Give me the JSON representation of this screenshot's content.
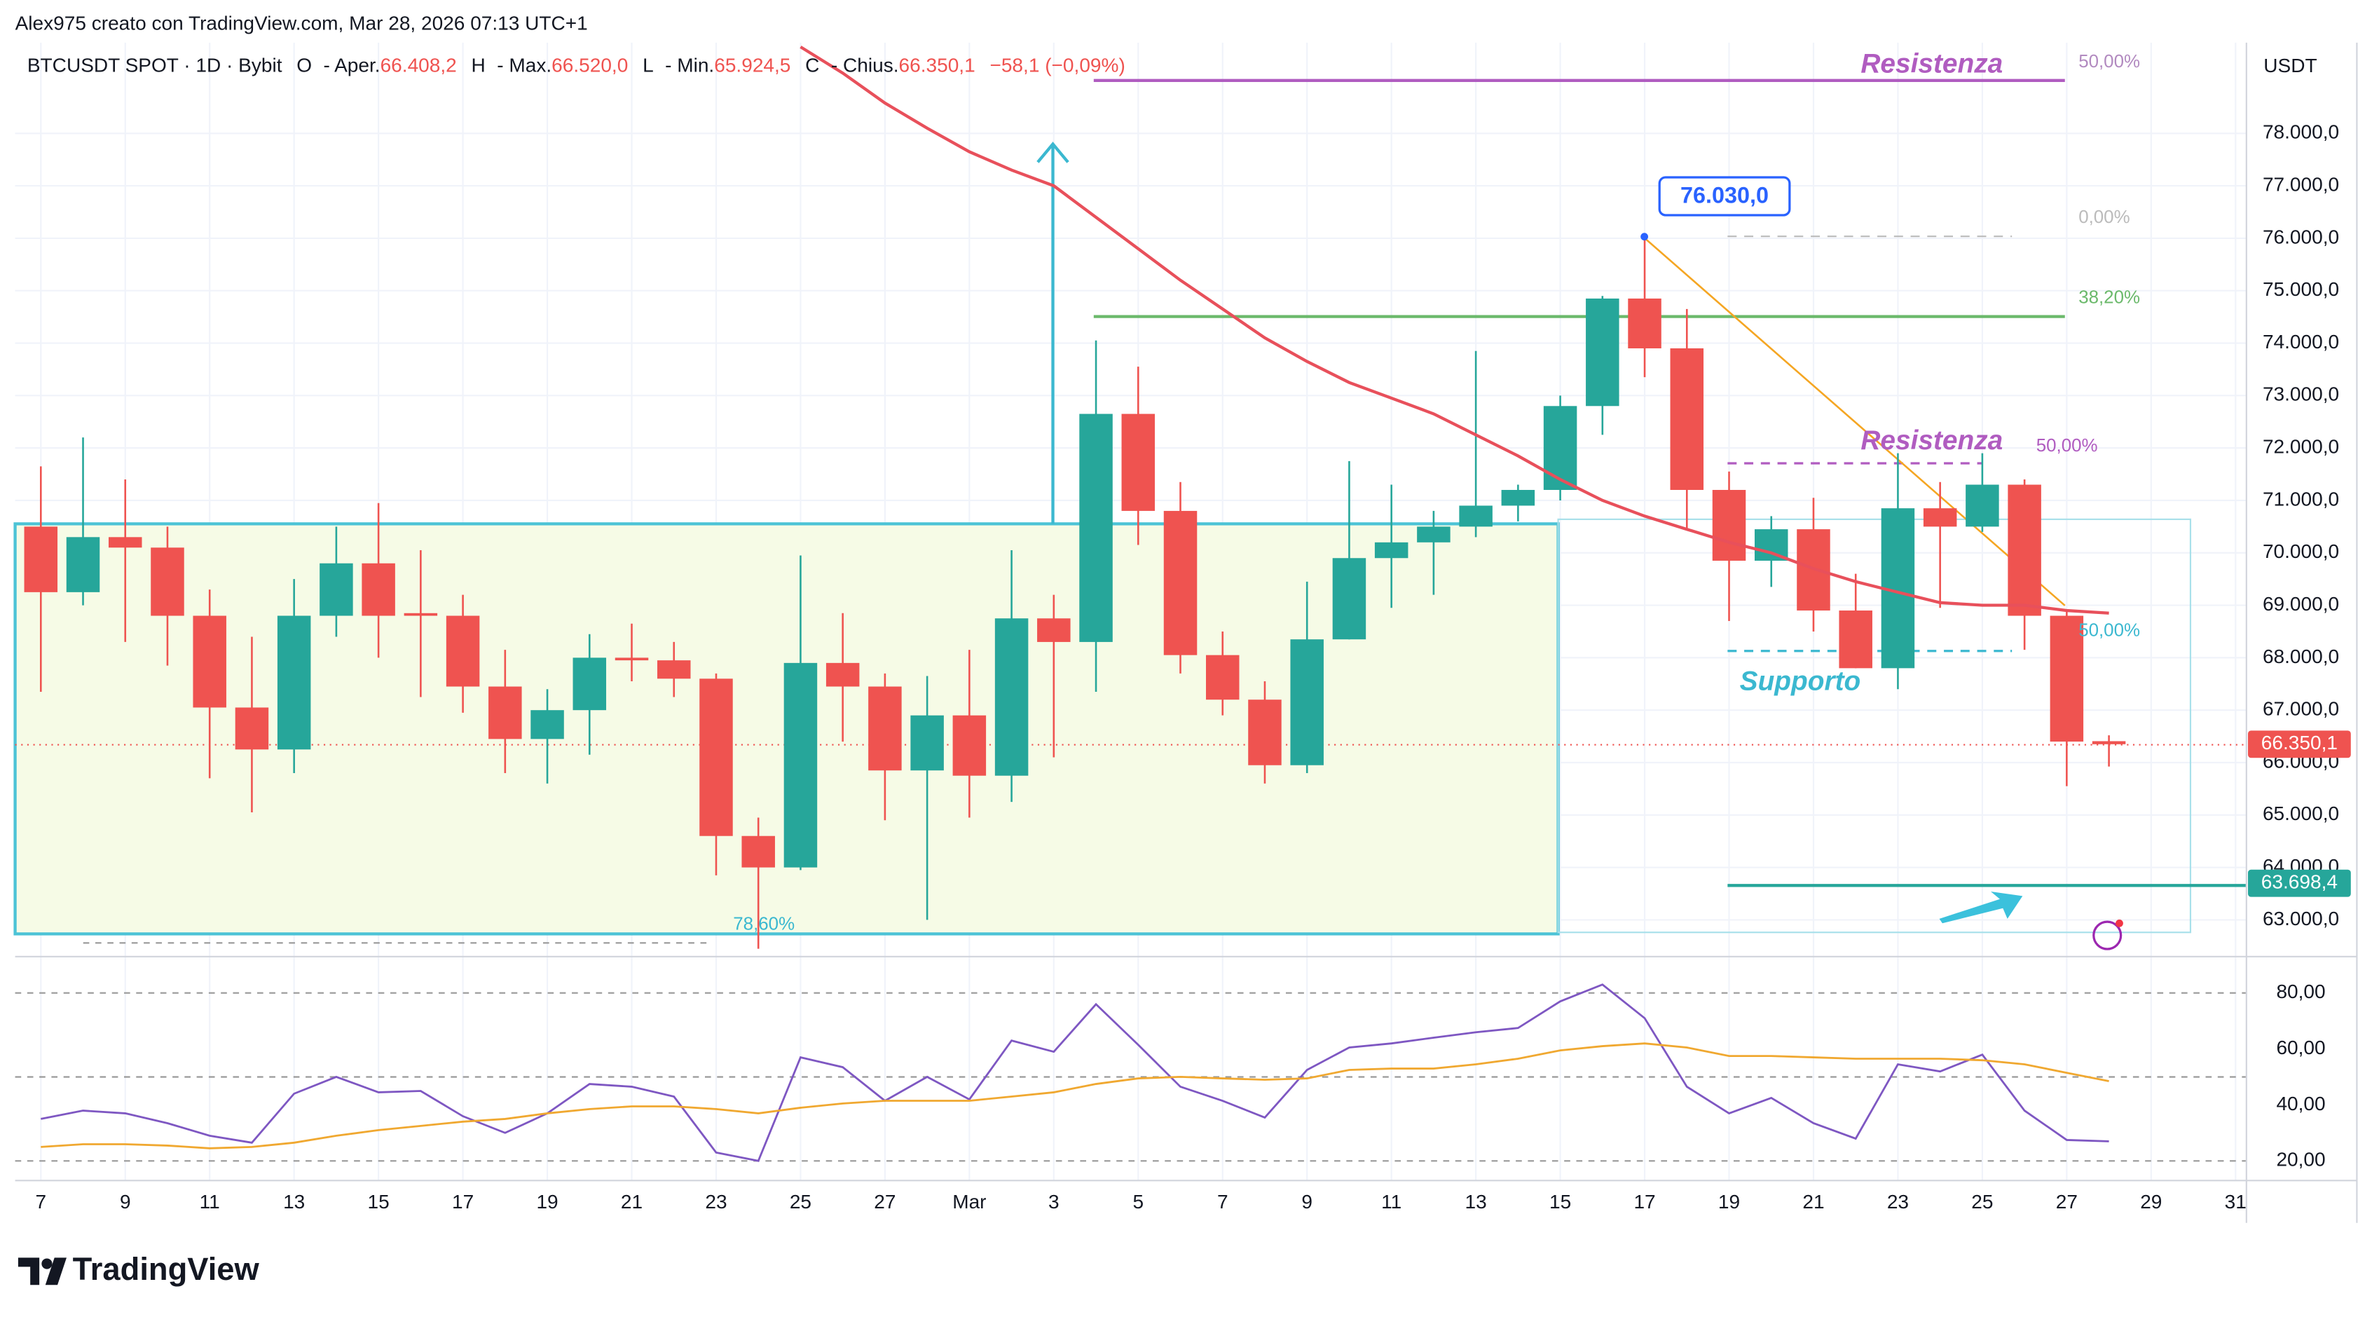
{
  "header": {
    "credit": "Alex975 creato con TradingView.com, Mar 28, 2026 07:13 UTC+1",
    "symbol": "BTCUSDT SPOT · 1D · Bybit",
    "items": [
      "O",
      "- Aper.",
      "66.408,2",
      "H",
      "- Max.",
      "66.520,0",
      "L",
      "- Min.",
      "65.924,5",
      "C",
      "- Chius.",
      "66.350,1",
      "−58,1 (−0,09%)"
    ]
  },
  "brand": "TradingView",
  "chart_data": [
    {
      "type": "candlestick",
      "unit": "USDT",
      "up_color": "#26a69a",
      "down_color": "#ef5350",
      "categories": [
        "7",
        null,
        "9",
        null,
        "11",
        null,
        "13",
        null,
        "15",
        null,
        "17",
        null,
        "19",
        null,
        "21",
        null,
        "23",
        null,
        "25",
        null,
        "27",
        null,
        "Mar",
        null,
        "3",
        null,
        "5",
        null,
        "7",
        null,
        "9",
        null,
        "11",
        null,
        "13",
        null,
        "15",
        null,
        "17",
        null,
        "19",
        null,
        "21",
        null,
        "23",
        null,
        "25",
        null,
        "27",
        null,
        "29",
        null,
        "31"
      ],
      "open": [
        70500,
        69250,
        70300,
        70100,
        68800,
        67050,
        66250,
        68800,
        69800,
        68850,
        68800,
        67450,
        66450,
        67000,
        68000,
        67950,
        67600,
        64600,
        64000,
        67900,
        67450,
        65850,
        66900,
        65750,
        68750,
        68300,
        72650,
        70800,
        68050,
        67200,
        65950,
        68350,
        69900,
        70200,
        70500,
        70900,
        71200,
        72800,
        74850,
        73900,
        71200,
        69850,
        70450,
        68900,
        67800,
        70850,
        70500,
        71300,
        68800,
        66408.2,
        null,
        null,
        null
      ],
      "high": [
        71650,
        72200,
        71400,
        70500,
        69300,
        68400,
        69500,
        70500,
        70950,
        70050,
        69200,
        68150,
        67400,
        68450,
        68650,
        68300,
        67700,
        64950,
        69950,
        68850,
        67700,
        67650,
        68150,
        70050,
        69200,
        74050,
        73550,
        71350,
        68500,
        67550,
        69450,
        71750,
        71300,
        70800,
        73850,
        71300,
        73000,
        74900,
        76030,
        74650,
        71550,
        70700,
        71050,
        69600,
        71900,
        71350,
        71900,
        71400,
        68900,
        66520,
        null,
        null,
        null
      ],
      "low": [
        67350,
        69000,
        68300,
        67850,
        65700,
        65050,
        65800,
        68400,
        68000,
        67250,
        66950,
        65800,
        65600,
        66150,
        67550,
        67250,
        63850,
        62450,
        63950,
        66400,
        64900,
        63000,
        64950,
        65250,
        66100,
        67350,
        70150,
        67700,
        66900,
        65600,
        65800,
        68350,
        68950,
        69200,
        70300,
        70600,
        71000,
        72250,
        73350,
        70450,
        68700,
        69350,
        68500,
        67800,
        67400,
        68950,
        70400,
        68150,
        65550,
        65924.5,
        null,
        null,
        null
      ],
      "close": [
        69250,
        70300,
        70100,
        68800,
        67050,
        66250,
        68800,
        69800,
        68800,
        68800,
        67450,
        66450,
        67000,
        68000,
        67950,
        67600,
        64600,
        64000,
        67900,
        67450,
        65850,
        66900,
        65750,
        68750,
        68300,
        72650,
        70800,
        68050,
        67200,
        65950,
        68350,
        69900,
        70200,
        70500,
        70900,
        71200,
        72800,
        74850,
        73900,
        71200,
        69850,
        70450,
        68900,
        67800,
        70850,
        70500,
        71300,
        68800,
        66400,
        66350.1,
        null,
        null,
        null
      ],
      "ma": {
        "color": "#e8505b",
        "values": [
          null,
          null,
          null,
          null,
          null,
          null,
          null,
          null,
          null,
          null,
          null,
          null,
          null,
          null,
          null,
          null,
          null,
          null,
          79650,
          79150,
          78580,
          78100,
          77650,
          77300,
          77000,
          76400,
          75800,
          75200,
          74650,
          74100,
          73650,
          73250,
          72950,
          72650,
          72250,
          71850,
          71400,
          71000,
          70700,
          70450,
          70200,
          70000,
          69700,
          69450,
          69250,
          69050,
          69000,
          69000,
          68900,
          68850,
          null,
          null,
          null
        ]
      },
      "ylim": [
        62300,
        79730
      ],
      "yticks": [
        {
          "value": 63000,
          "label": "63.000,0"
        },
        {
          "value": 64000,
          "label": "64.000,0"
        },
        {
          "value": 65000,
          "label": "65.000,0"
        },
        {
          "value": 66000,
          "label": "66.000,0"
        },
        {
          "value": 67000,
          "label": "67.000,0"
        },
        {
          "value": 68000,
          "label": "68.000,0"
        },
        {
          "value": 69000,
          "label": "69.000,0"
        },
        {
          "value": 70000,
          "label": "70.000,0"
        },
        {
          "value": 71000,
          "label": "71.000,0"
        },
        {
          "value": 72000,
          "label": "72.000,0"
        },
        {
          "value": 73000,
          "label": "73.000,0"
        },
        {
          "value": 74000,
          "label": "74.000,0"
        },
        {
          "value": 75000,
          "label": "75.000,0"
        },
        {
          "value": 76000,
          "label": "76.000,0"
        },
        {
          "value": 77000,
          "label": "77.000,0"
        },
        {
          "value": 78000,
          "label": "78.000,0"
        }
      ],
      "price_labels": [
        {
          "value": 66350.1,
          "label": "66.350,1",
          "color": "#ef5350"
        },
        {
          "value": 63698.4,
          "label": "63.698,4",
          "color": "#26a69a"
        }
      ],
      "callout": {
        "value": 76030,
        "label": "76.030,0"
      },
      "annotations": [
        "Resistenza",
        "50,00%",
        "0,00%",
        "38,20%",
        "Resistenza",
        "50,00%",
        "50,00%",
        "Supporto",
        "78,60%"
      ],
      "grid": true
    },
    {
      "type": "line",
      "ylim": [
        13,
        93
      ],
      "yticks": [
        {
          "value": 20,
          "label": "20,00"
        },
        {
          "value": 40,
          "label": "40,00"
        },
        {
          "value": 60,
          "label": "60,00"
        },
        {
          "value": 80,
          "label": "80,00"
        }
      ],
      "levels": [
        80,
        50,
        20
      ],
      "series": [
        {
          "color": "#7e57c2",
          "values": [
            35,
            38,
            37,
            33.5,
            29,
            26.5,
            44,
            50,
            44.5,
            45,
            36,
            30,
            37,
            47.5,
            46.5,
            43,
            23,
            20,
            57,
            53.5,
            41.5,
            50,
            42,
            63,
            59,
            76,
            61.5,
            46.5,
            41.5,
            35.5,
            52.5,
            60.5,
            62,
            64,
            66,
            67.5,
            77,
            83,
            71,
            46.5,
            37,
            42.5,
            33.5,
            28,
            54.5,
            52,
            58,
            38,
            27.5,
            27,
            null,
            null,
            null
          ]
        },
        {
          "color": "#f0a830",
          "values": [
            25,
            26,
            26,
            25.5,
            24.5,
            25,
            26.5,
            29,
            31,
            32.5,
            34,
            35,
            37,
            38.5,
            39.5,
            39.5,
            38.5,
            37,
            39,
            40.5,
            41.5,
            41.5,
            41.5,
            43,
            44.5,
            47.5,
            49.5,
            50,
            49.5,
            49,
            49.5,
            52.5,
            53,
            53,
            54.5,
            56.5,
            59.5,
            61,
            62,
            60.5,
            57.5,
            57.5,
            57,
            56.5,
            56.5,
            56.5,
            56,
            54.5,
            51.5,
            48.5,
            null,
            null,
            null
          ]
        }
      ]
    }
  ]
}
